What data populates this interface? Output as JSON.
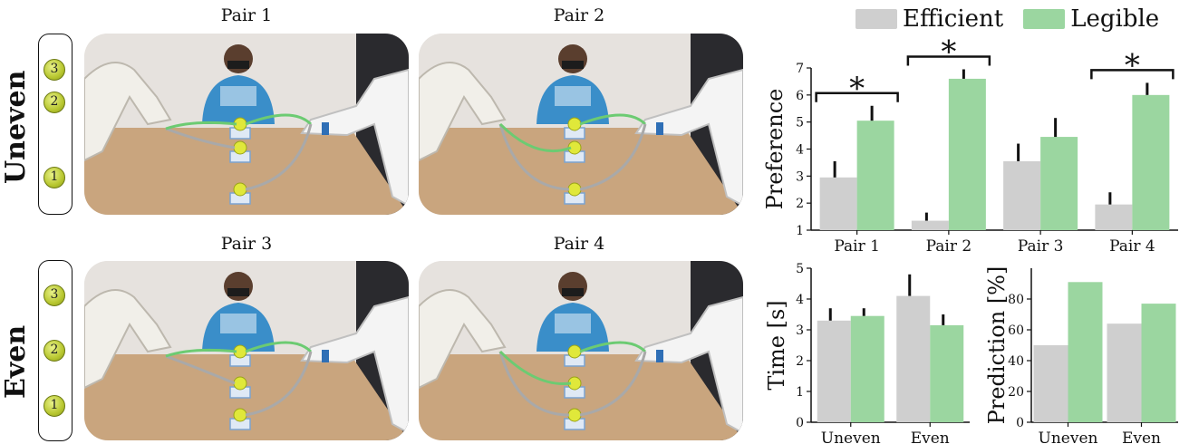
{
  "rows": [
    {
      "label": "Uneven",
      "balls": [
        "3",
        "2",
        "1"
      ]
    },
    {
      "label": "Even",
      "balls": [
        "3",
        "2",
        "1"
      ]
    }
  ],
  "pairs": [
    {
      "title": "Pair 1"
    },
    {
      "title": "Pair 2"
    },
    {
      "title": "Pair 3"
    },
    {
      "title": "Pair 4"
    }
  ],
  "legend": [
    {
      "name": "Efficient",
      "color": "#cfcfcf"
    },
    {
      "name": "Legible",
      "color": "#9bd6a0"
    }
  ],
  "colors": {
    "efficient": "#cfcfcf",
    "legible": "#9bd6a0",
    "error": "#111111"
  },
  "chart_data": [
    {
      "type": "bar",
      "ylabel": "Preference",
      "categories": [
        "Pair 1",
        "Pair 2",
        "Pair 3",
        "Pair 4"
      ],
      "ylim": [
        1,
        7
      ],
      "yticks": [
        1,
        2,
        3,
        4,
        5,
        6,
        7
      ],
      "series": [
        {
          "name": "Efficient",
          "values": [
            2.95,
            1.35,
            3.55,
            1.95
          ],
          "errors": [
            0.6,
            0.3,
            0.65,
            0.45
          ]
        },
        {
          "name": "Legible",
          "values": [
            5.05,
            6.6,
            4.45,
            6.0
          ],
          "errors": [
            0.55,
            0.35,
            0.7,
            0.45
          ]
        }
      ],
      "significance": [
        {
          "category": "Pair 1",
          "mark": "*"
        },
        {
          "category": "Pair 2",
          "mark": "*"
        },
        {
          "category": "Pair 4",
          "mark": "*"
        }
      ]
    },
    {
      "type": "bar",
      "ylabel": "Time [s]",
      "categories": [
        "Uneven",
        "Even"
      ],
      "ylim": [
        0,
        5
      ],
      "yticks": [
        0,
        1,
        2,
        3,
        4,
        5
      ],
      "series": [
        {
          "name": "Efficient",
          "values": [
            3.3,
            4.1
          ],
          "errors": [
            0.4,
            0.7
          ]
        },
        {
          "name": "Legible",
          "values": [
            3.45,
            3.15
          ],
          "errors": [
            0.25,
            0.35
          ]
        }
      ]
    },
    {
      "type": "bar",
      "ylabel": "Prediction [%]",
      "categories": [
        "Uneven",
        "Even"
      ],
      "ylim": [
        0,
        100
      ],
      "yticks": [
        0,
        20,
        40,
        60,
        80
      ],
      "series": [
        {
          "name": "Efficient",
          "values": [
            50,
            64
          ],
          "errors": []
        },
        {
          "name": "Legible",
          "values": [
            91,
            77
          ],
          "errors": []
        }
      ]
    }
  ]
}
